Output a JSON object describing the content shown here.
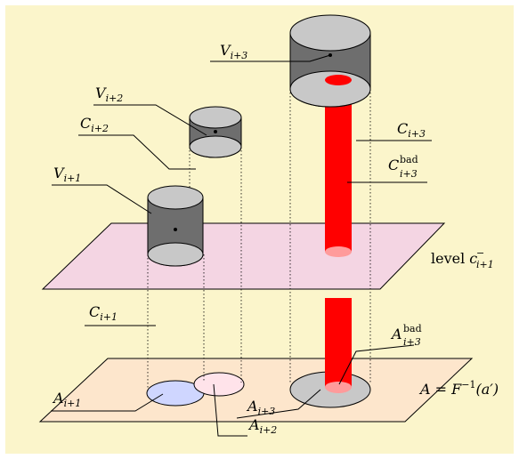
{
  "labels": {
    "V_i3": {
      "base": "V",
      "sub": "i+3"
    },
    "V_i2": {
      "base": "V",
      "sub": "i+2"
    },
    "C_i2": {
      "base": "C",
      "sub": "i+2"
    },
    "V_i1": {
      "base": "V",
      "sub": "i+1"
    },
    "C_i3": {
      "base": "C",
      "sub": "i+3"
    },
    "C_bad": {
      "base": "C",
      "sub": "i+3",
      "sup": "bad"
    },
    "level": {
      "word": "level ",
      "base": "c",
      "sub": "i+1",
      "sup": "−"
    },
    "C_i1": {
      "base": "C",
      "sub": "i+1"
    },
    "A_bad": {
      "base": "A",
      "sub": "i+3",
      "sup": "bad"
    },
    "A_i1": {
      "base": "A",
      "sub": "i+1"
    },
    "A_i3": {
      "base": "A",
      "sub": "i+3"
    },
    "A_i2": {
      "base": "A",
      "sub": "i+2"
    },
    "A_eq": {
      "text": "A = F",
      "sup": "−1",
      "tail": "(a′)"
    }
  },
  "colors": {
    "background": "#fbf5cb",
    "level_plane": "#f4d5e3",
    "base_plane": "#fde6cc",
    "cylinder_body": "#6e6e6e",
    "cylinder_cap": "#c8c8c8",
    "bad_tube": "#ff0000",
    "bad_tube_end": "#ff9b9b",
    "disk_A_i1": "#cfd6ff",
    "disk_A_i2": "#ffe3ea",
    "disk_A_i3": "#c8c8c8"
  }
}
